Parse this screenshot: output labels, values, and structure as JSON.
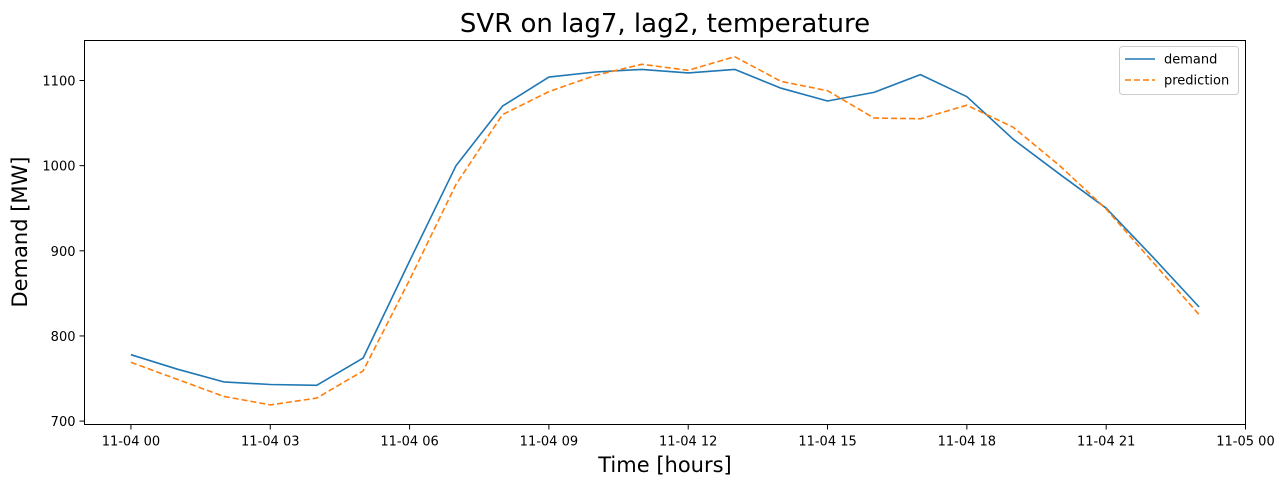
{
  "chart_data": {
    "type": "line",
    "title": "SVR on lag7, lag2, temperature",
    "xlabel": "Time [hours]",
    "ylabel": "Demand [MW]",
    "x_ticks": [
      "11-04 00",
      "11-04 03",
      "11-04 06",
      "11-04 09",
      "11-04 12",
      "11-04 15",
      "11-04 18",
      "11-04 21",
      "11-05 00"
    ],
    "y_ticks": [
      700,
      800,
      900,
      1000,
      1100
    ],
    "xlim": [
      "11-03 23:00",
      "11-05 00:00"
    ],
    "ylim": [
      696,
      1147
    ],
    "grid": false,
    "legend_position": "top-right",
    "x": [
      "11-04 00:00",
      "11-04 01:00",
      "11-04 02:00",
      "11-04 03:00",
      "11-04 04:00",
      "11-04 05:00",
      "11-04 06:00",
      "11-04 07:00",
      "11-04 08:00",
      "11-04 09:00",
      "11-04 10:00",
      "11-04 11:00",
      "11-04 12:00",
      "11-04 13:00",
      "11-04 14:00",
      "11-04 15:00",
      "11-04 16:00",
      "11-04 17:00",
      "11-04 18:00",
      "11-04 19:00",
      "11-04 20:00",
      "11-04 21:00",
      "11-04 22:00",
      "11-04 23:00"
    ],
    "series": [
      {
        "name": "demand",
        "color": "#1f77b4",
        "style": "solid",
        "values": [
          778,
          761,
          746,
          743,
          742,
          774,
          888,
          1000,
          1070,
          1104,
          1110,
          1113,
          1109,
          1113,
          1091,
          1076,
          1086,
          1107,
          1081,
          1031,
          990,
          950,
          893,
          834
        ]
      },
      {
        "name": "prediction",
        "color": "#ff7f0e",
        "style": "dashed",
        "values": [
          769,
          749,
          729,
          719,
          727,
          759,
          866,
          978,
          1060,
          1087,
          1106,
          1119,
          1112,
          1128,
          1099,
          1088,
          1056,
          1055,
          1071,
          1045,
          1000,
          949,
          887,
          825
        ]
      }
    ]
  }
}
